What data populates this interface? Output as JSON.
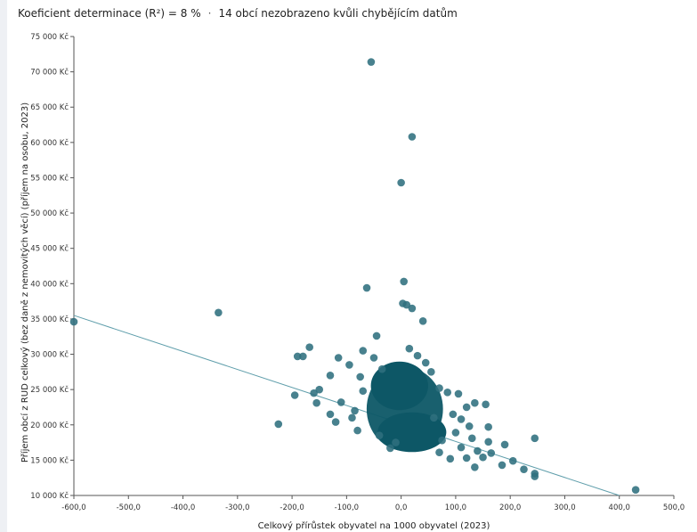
{
  "header": {
    "r2_text": "Koeficient determinace (R²) = 8 %",
    "separator": "·",
    "missing_text": "14 obcí nezobrazeno kvůli chybějícím datům"
  },
  "colors": {
    "point": "#2f6f7e",
    "cluster": "#0d5766",
    "trend": "#5f9eab",
    "axis": "#555555"
  },
  "chart_data": {
    "type": "scatter",
    "title": "",
    "xlabel": "Celkový přírůstek obyvatel na 1000 obyvatel (2023)",
    "ylabel": "Příjem obcí z RUD celkový (bez daně z nemovitých věcí) (příjem na osobu, 2023)",
    "xlim": [
      -600,
      500
    ],
    "ylim": [
      10000,
      75000
    ],
    "x_ticks": [
      "-600,0",
      "-500,0",
      "-400,0",
      "-300,0",
      "-200,0",
      "-100,0",
      "0,0",
      "100,0",
      "200,0",
      "300,0",
      "400,0",
      "500,0"
    ],
    "y_ticks": [
      "10 000 Kč",
      "15 000 Kč",
      "20 000 Kč",
      "25 000 Kč",
      "30 000 Kč",
      "35 000 Kč",
      "40 000 Kč",
      "45 000 Kč",
      "50 000 Kč",
      "55 000 Kč",
      "60 000 Kč",
      "65 000 Kč",
      "70 000 Kč",
      "75 000 Kč"
    ],
    "trendline": {
      "x": [
        -600,
        400
      ],
      "y": [
        35500,
        10000
      ]
    },
    "dense_cluster": {
      "x": [
        -60,
        80
      ],
      "y": [
        16500,
        29000
      ]
    },
    "points": [
      {
        "x": -55,
        "y": 71400
      },
      {
        "x": 20,
        "y": 60800
      },
      {
        "x": 0,
        "y": 54300
      },
      {
        "x": -63,
        "y": 39400
      },
      {
        "x": 5,
        "y": 40300
      },
      {
        "x": -335,
        "y": 35900
      },
      {
        "x": -600,
        "y": 34600
      },
      {
        "x": 3,
        "y": 37200
      },
      {
        "x": 10,
        "y": 37000
      },
      {
        "x": 20,
        "y": 36500
      },
      {
        "x": 40,
        "y": 34700
      },
      {
        "x": -45,
        "y": 32600
      },
      {
        "x": -168,
        "y": 31000
      },
      {
        "x": -180,
        "y": 29700
      },
      {
        "x": -190,
        "y": 29700
      },
      {
        "x": -70,
        "y": 30500
      },
      {
        "x": 15,
        "y": 30800
      },
      {
        "x": 30,
        "y": 29800
      },
      {
        "x": -115,
        "y": 29500
      },
      {
        "x": -95,
        "y": 28500
      },
      {
        "x": -130,
        "y": 27000
      },
      {
        "x": -150,
        "y": 25000
      },
      {
        "x": -195,
        "y": 24200
      },
      {
        "x": -160,
        "y": 24500
      },
      {
        "x": -155,
        "y": 23100
      },
      {
        "x": -110,
        "y": 23200
      },
      {
        "x": -225,
        "y": 20100
      },
      {
        "x": -130,
        "y": 21500
      },
      {
        "x": -120,
        "y": 20400
      },
      {
        "x": -85,
        "y": 22000
      },
      {
        "x": -80,
        "y": 19200
      },
      {
        "x": -90,
        "y": 21000
      },
      {
        "x": -70,
        "y": 24800
      },
      {
        "x": -75,
        "y": 26800
      },
      {
        "x": 85,
        "y": 24600
      },
      {
        "x": 105,
        "y": 24400
      },
      {
        "x": 120,
        "y": 22500
      },
      {
        "x": 135,
        "y": 23100
      },
      {
        "x": 155,
        "y": 22900
      },
      {
        "x": 95,
        "y": 21500
      },
      {
        "x": 110,
        "y": 20800
      },
      {
        "x": 125,
        "y": 19800
      },
      {
        "x": 160,
        "y": 19700
      },
      {
        "x": 100,
        "y": 18900
      },
      {
        "x": 130,
        "y": 18100
      },
      {
        "x": 160,
        "y": 17600
      },
      {
        "x": 190,
        "y": 17200
      },
      {
        "x": 245,
        "y": 18100
      },
      {
        "x": 110,
        "y": 16800
      },
      {
        "x": 140,
        "y": 16300
      },
      {
        "x": 165,
        "y": 16000
      },
      {
        "x": 120,
        "y": 15300
      },
      {
        "x": 150,
        "y": 15400
      },
      {
        "x": 205,
        "y": 14900
      },
      {
        "x": 185,
        "y": 14300
      },
      {
        "x": 135,
        "y": 14000
      },
      {
        "x": 225,
        "y": 13700
      },
      {
        "x": 245,
        "y": 13100
      },
      {
        "x": 245,
        "y": 12700
      },
      {
        "x": 430,
        "y": 10800
      },
      {
        "x": 90,
        "y": 15200
      },
      {
        "x": 70,
        "y": 16100
      },
      {
        "x": -20,
        "y": 16700
      },
      {
        "x": -10,
        "y": 17500
      },
      {
        "x": -40,
        "y": 18500
      },
      {
        "x": -35,
        "y": 27900
      },
      {
        "x": 45,
        "y": 28800
      },
      {
        "x": 55,
        "y": 27500
      },
      {
        "x": 70,
        "y": 25200
      },
      {
        "x": -50,
        "y": 29500
      },
      {
        "x": 60,
        "y": 21000
      },
      {
        "x": 75,
        "y": 17800
      }
    ]
  }
}
